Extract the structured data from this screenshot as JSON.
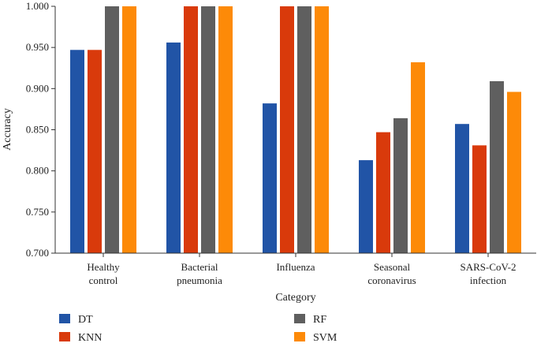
{
  "chart_data": {
    "type": "bar",
    "title": "",
    "xlabel": "Category",
    "ylabel": "Accuracy",
    "ylim": [
      0.7,
      1.0
    ],
    "yticks": [
      "0.700",
      "0.750",
      "0.800",
      "0.850",
      "0.900",
      "0.950",
      "1.000"
    ],
    "categories": [
      [
        "Healthy",
        "control"
      ],
      [
        "Bacterial",
        "pneumonia"
      ],
      [
        "Influenza"
      ],
      [
        "Seasonal",
        "coronavirus"
      ],
      [
        "SARS-CoV-2",
        "infection"
      ]
    ],
    "series": [
      {
        "name": "DT",
        "color": "#2154a6",
        "values": [
          0.947,
          0.956,
          0.882,
          0.813,
          0.857
        ]
      },
      {
        "name": "KNN",
        "color": "#d93a0b",
        "values": [
          0.947,
          1.0,
          1.0,
          0.847,
          0.831
        ]
      },
      {
        "name": "RF",
        "color": "#5f5f5f",
        "values": [
          1.0,
          1.0,
          1.0,
          0.864,
          0.909
        ]
      },
      {
        "name": "SVM",
        "color": "#fd8a08",
        "values": [
          1.0,
          1.0,
          1.0,
          0.932,
          0.896
        ]
      }
    ],
    "legend_position": "bottom"
  }
}
